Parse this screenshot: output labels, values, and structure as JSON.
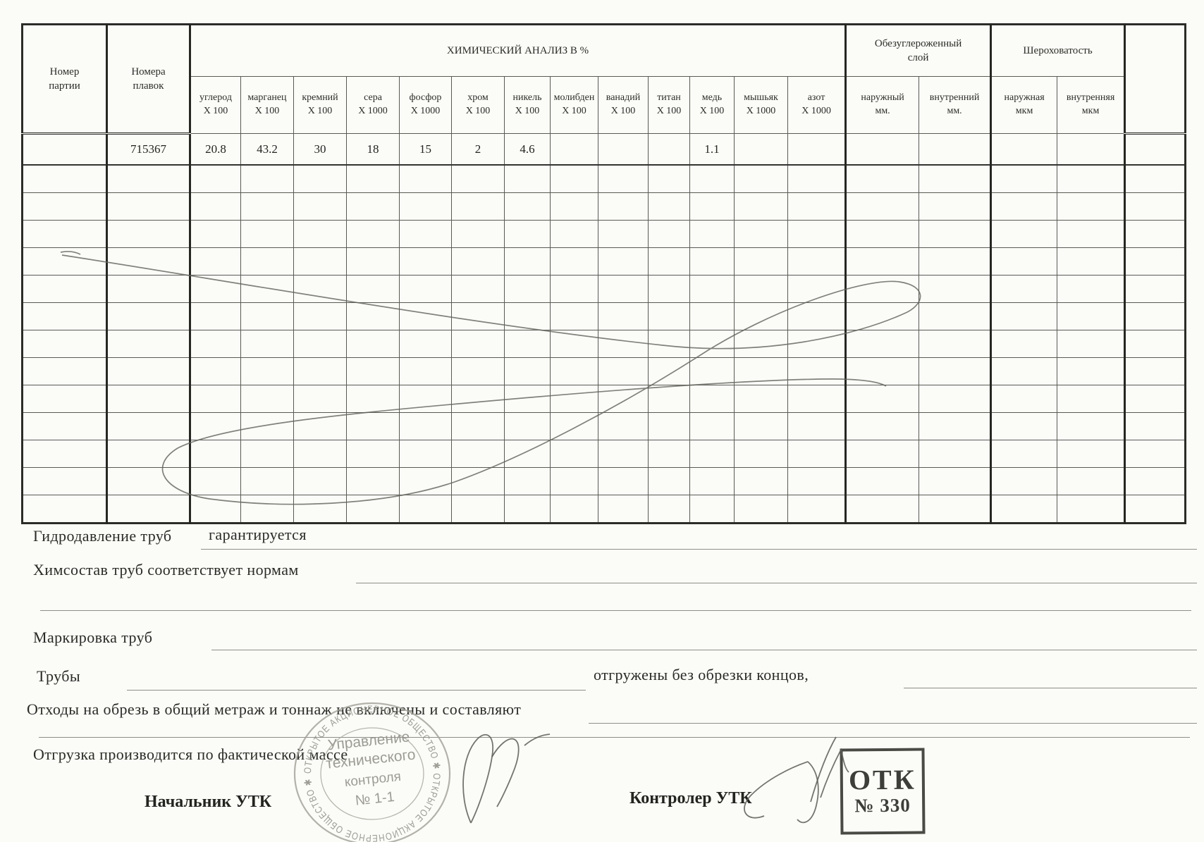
{
  "table": {
    "title_chem": "ХИМИЧЕСКИЙ АНАЛИЗ  В   %",
    "col_party": "Номер\nпартии",
    "col_melts": "Номера\nплавок",
    "group_decarb": "Обезуглероженный\nслой",
    "group_rough": "Шероховатость",
    "chem_columns": [
      {
        "name": "углерод",
        "mult": "X 100"
      },
      {
        "name": "марганец",
        "mult": "X 100"
      },
      {
        "name": "кремний",
        "mult": "X 100"
      },
      {
        "name": "сера",
        "mult": "X 1000"
      },
      {
        "name": "фосфор",
        "mult": "X 1000"
      },
      {
        "name": "хром",
        "mult": "X 100"
      },
      {
        "name": "никель",
        "mult": "X 100"
      },
      {
        "name": "молибден",
        "mult": "X 100"
      },
      {
        "name": "ванадий",
        "mult": "X 100"
      },
      {
        "name": "титан",
        "mult": "X 100"
      },
      {
        "name": "медь",
        "mult": "X 100"
      },
      {
        "name": "мышьяк",
        "mult": "X 1000"
      },
      {
        "name": "азот",
        "mult": "X 1000"
      }
    ],
    "decarb_columns": [
      {
        "name": "наружный",
        "unit": "мм."
      },
      {
        "name": "внутренний",
        "unit": "мм."
      }
    ],
    "rough_columns": [
      {
        "name": "наружная",
        "unit": "мкм"
      },
      {
        "name": "внутренняя",
        "unit": "мкм"
      }
    ],
    "rows": [
      [
        "",
        "715367",
        "20.8",
        "43.2",
        "30",
        "18",
        "15",
        "2",
        "4.6",
        "",
        "",
        "",
        "1.1",
        "",
        "",
        "",
        "",
        "",
        "",
        ""
      ]
    ],
    "extra_empty_rows": 13
  },
  "footer": {
    "hydro_label": "Гидродавление труб",
    "hydro_value": "гарантируется",
    "chem_label": "Химсостав труб соответствует нормам",
    "marking_label": "Маркировка труб",
    "pipes_label": "Трубы",
    "pipes_note": "отгружены без обрезки концов,",
    "waste_label": "Отходы на обрезь в общий метраж и тоннаж не включены и составляют",
    "shipping_label": "Отгрузка производится по фактической массе",
    "chief_label": "Начальник  УТК",
    "controller_label": "Контролер УТК"
  },
  "stamps": {
    "round": {
      "ring_text": "ОТКРЫТОЕ АКЦИОНЕРНОЕ ОБЩЕСТВО ✱ ОТКРЫТОЕ АКЦИОНЕРНОЕ ОБЩЕСТВО ✱",
      "line1": "Управление",
      "line2": "технического",
      "line3": "контроля",
      "line4": "№ 1-1"
    },
    "otk": {
      "line1": "ОТК",
      "line2": "№ 330"
    }
  },
  "colors": {
    "ink": "#2c2c28",
    "grid_thin": "#5a5a54",
    "grid_thick": "#262622",
    "stamp_gray": "#9b9b91",
    "pen_gray": "#63635d"
  }
}
